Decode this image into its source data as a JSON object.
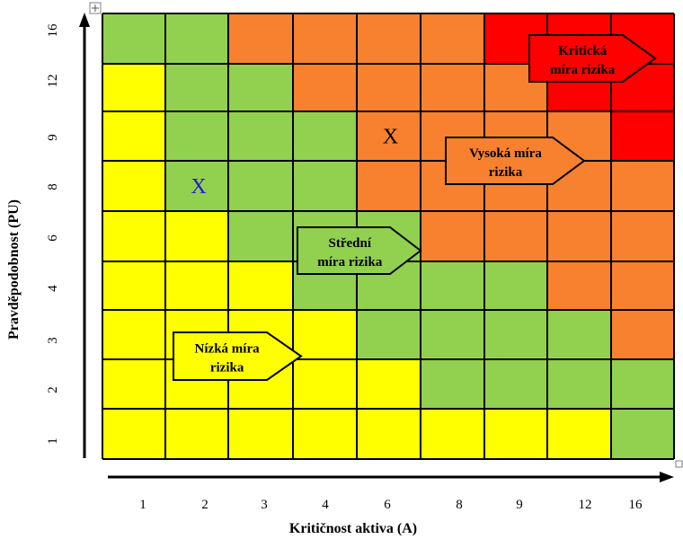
{
  "chart_data": {
    "type": "heatmap",
    "xlabel": "Kritičnost aktiva (A)",
    "ylabel": "Pravděpodobnost (PU)",
    "x_categories": [
      "1",
      "2",
      "3",
      "4",
      "6",
      "8",
      "9",
      "12",
      "16"
    ],
    "y_categories": [
      "1",
      "2",
      "3",
      "4",
      "6",
      "8",
      "9",
      "12",
      "16"
    ],
    "level_colors": {
      "low": "#ffff00",
      "medium": "#92d050",
      "high": "#f7812f",
      "critical": "#ff0000"
    },
    "grid_levels_top_to_bottom": [
      [
        "medium",
        "medium",
        "high",
        "high",
        "high",
        "high",
        "critical",
        "critical",
        "critical"
      ],
      [
        "low",
        "medium",
        "medium",
        "high",
        "high",
        "high",
        "high",
        "critical",
        "critical"
      ],
      [
        "low",
        "medium",
        "medium",
        "medium",
        "high",
        "high",
        "high",
        "high",
        "critical"
      ],
      [
        "low",
        "medium",
        "medium",
        "medium",
        "high",
        "high",
        "high",
        "high",
        "high"
      ],
      [
        "low",
        "low",
        "medium",
        "medium",
        "medium",
        "high",
        "high",
        "high",
        "high"
      ],
      [
        "low",
        "low",
        "low",
        "medium",
        "medium",
        "medium",
        "medium",
        "high",
        "high"
      ],
      [
        "low",
        "low",
        "low",
        "low",
        "medium",
        "medium",
        "medium",
        "medium",
        "high"
      ],
      [
        "low",
        "low",
        "low",
        "low",
        "low",
        "medium",
        "medium",
        "medium",
        "medium"
      ],
      [
        "low",
        "low",
        "low",
        "low",
        "low",
        "low",
        "low",
        "low",
        "medium"
      ]
    ],
    "zones": [
      {
        "level": "low",
        "lines": [
          "Nízká míra",
          "rizika"
        ]
      },
      {
        "level": "medium",
        "lines": [
          "Střední",
          "míra rizika"
        ]
      },
      {
        "level": "high",
        "lines": [
          "Vysoká míra",
          "rizika"
        ]
      },
      {
        "level": "critical",
        "lines": [
          "Kritická",
          "míra rizika"
        ]
      }
    ],
    "markers": [
      {
        "label": "X",
        "x": "2",
        "y": "8",
        "color": "#1f1fcc"
      },
      {
        "label": "X",
        "x": "6",
        "y": "9",
        "color": "#000000"
      }
    ]
  }
}
